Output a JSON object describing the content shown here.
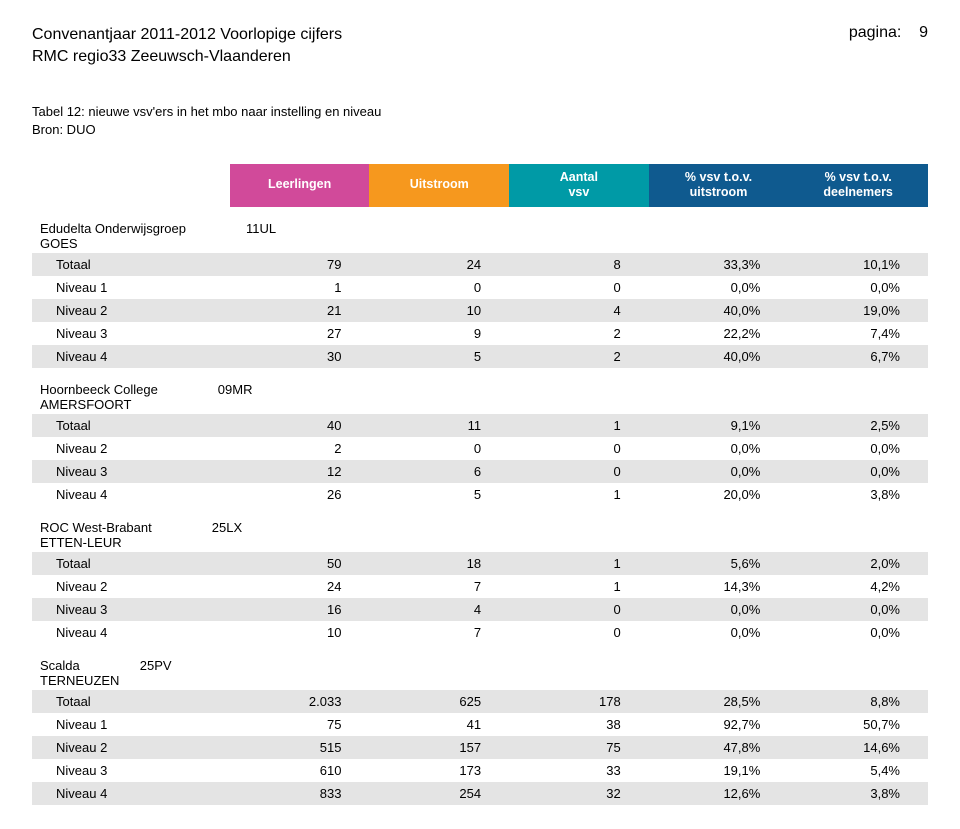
{
  "colors": {
    "header_cells": [
      "#d14a9a",
      "#f6981e",
      "#009aa6",
      "#0f5a8f",
      "#0f5a8f"
    ],
    "shaded_row_bg": "#e4e4e4",
    "plain_row_bg": "#ffffff"
  },
  "page": {
    "title_line1": "Convenantjaar 2011-2012 Voorlopige cijfers",
    "title_line2": "RMC regio33 Zeeuwsch-Vlaanderen",
    "page_label": "pagina:",
    "page_number": "9"
  },
  "subheader": {
    "line1": "Tabel 12: nieuwe vsv'ers in het mbo naar instelling en niveau",
    "line2": "Bron: DUO"
  },
  "columns": {
    "labels": [
      "",
      "Leerlingen",
      "Uitstroom",
      "Aantal\nvsv",
      "% vsv t.o.v.\nuitstroom",
      "% vsv t.o.v.\ndeelnemers"
    ]
  },
  "sections": [
    {
      "name": "Edudelta Onderwijsgroep",
      "code": "11UL",
      "location": "GOES",
      "rows": [
        {
          "label": "Totaal",
          "shaded": true,
          "cells": [
            "79",
            "24",
            "8",
            "33,3%",
            "10,1%"
          ]
        },
        {
          "label": "Niveau 1",
          "shaded": false,
          "cells": [
            "1",
            "0",
            "0",
            "0,0%",
            "0,0%"
          ]
        },
        {
          "label": "Niveau 2",
          "shaded": true,
          "cells": [
            "21",
            "10",
            "4",
            "40,0%",
            "19,0%"
          ]
        },
        {
          "label": "Niveau 3",
          "shaded": false,
          "cells": [
            "27",
            "9",
            "2",
            "22,2%",
            "7,4%"
          ]
        },
        {
          "label": "Niveau 4",
          "shaded": true,
          "cells": [
            "30",
            "5",
            "2",
            "40,0%",
            "6,7%"
          ]
        }
      ]
    },
    {
      "name": "Hoornbeeck College",
      "code": "09MR",
      "location": "AMERSFOORT",
      "rows": [
        {
          "label": "Totaal",
          "shaded": true,
          "cells": [
            "40",
            "11",
            "1",
            "9,1%",
            "2,5%"
          ]
        },
        {
          "label": "Niveau 2",
          "shaded": false,
          "cells": [
            "2",
            "0",
            "0",
            "0,0%",
            "0,0%"
          ]
        },
        {
          "label": "Niveau 3",
          "shaded": true,
          "cells": [
            "12",
            "6",
            "0",
            "0,0%",
            "0,0%"
          ]
        },
        {
          "label": "Niveau 4",
          "shaded": false,
          "cells": [
            "26",
            "5",
            "1",
            "20,0%",
            "3,8%"
          ]
        }
      ]
    },
    {
      "name": "ROC West-Brabant",
      "code": "25LX",
      "location": "ETTEN-LEUR",
      "rows": [
        {
          "label": "Totaal",
          "shaded": true,
          "cells": [
            "50",
            "18",
            "1",
            "5,6%",
            "2,0%"
          ]
        },
        {
          "label": "Niveau 2",
          "shaded": false,
          "cells": [
            "24",
            "7",
            "1",
            "14,3%",
            "4,2%"
          ]
        },
        {
          "label": "Niveau 3",
          "shaded": true,
          "cells": [
            "16",
            "4",
            "0",
            "0,0%",
            "0,0%"
          ]
        },
        {
          "label": "Niveau 4",
          "shaded": false,
          "cells": [
            "10",
            "7",
            "0",
            "0,0%",
            "0,0%"
          ]
        }
      ]
    },
    {
      "name": "Scalda",
      "code": "25PV",
      "location": "TERNEUZEN",
      "rows": [
        {
          "label": "Totaal",
          "shaded": true,
          "cells": [
            "2.033",
            "625",
            "178",
            "28,5%",
            "8,8%"
          ]
        },
        {
          "label": "Niveau 1",
          "shaded": false,
          "cells": [
            "75",
            "41",
            "38",
            "92,7%",
            "50,7%"
          ]
        },
        {
          "label": "Niveau 2",
          "shaded": true,
          "cells": [
            "515",
            "157",
            "75",
            "47,8%",
            "14,6%"
          ]
        },
        {
          "label": "Niveau 3",
          "shaded": false,
          "cells": [
            "610",
            "173",
            "33",
            "19,1%",
            "5,4%"
          ]
        },
        {
          "label": "Niveau 4",
          "shaded": true,
          "cells": [
            "833",
            "254",
            "32",
            "12,6%",
            "3,8%"
          ]
        }
      ]
    }
  ]
}
